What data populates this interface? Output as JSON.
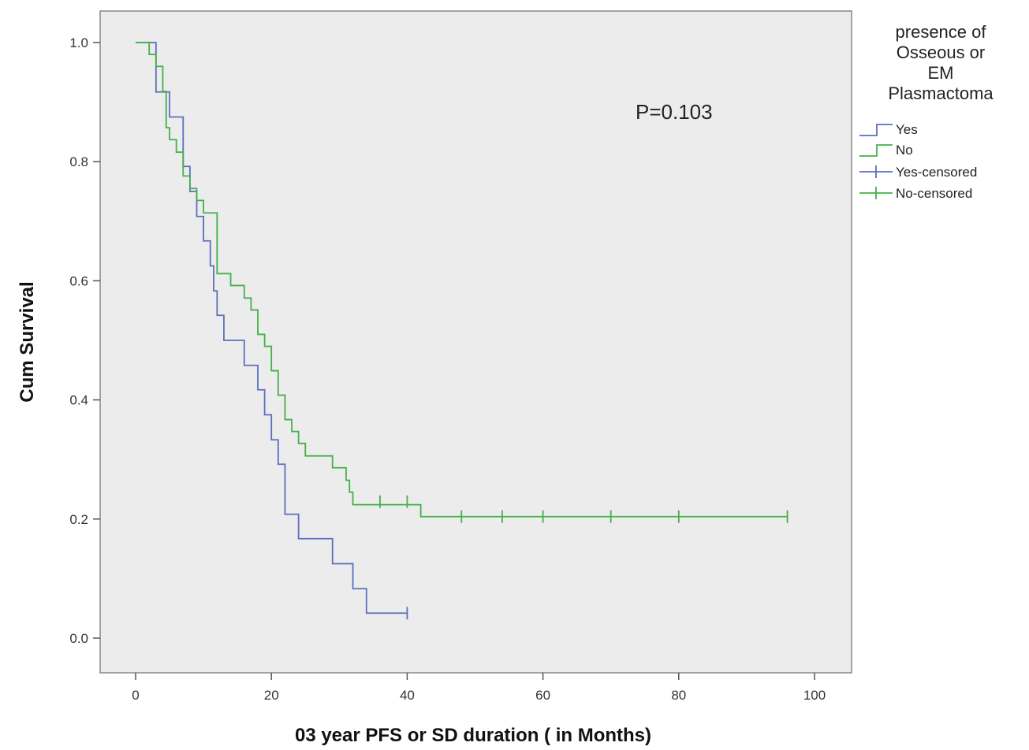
{
  "chart_data": {
    "type": "line",
    "subtype": "kaplan-meier",
    "title": "",
    "xlabel": "03 year PFS or SD duration ( in Months)",
    "ylabel": "Cum Survival",
    "xlim": [
      0,
      100
    ],
    "ylim": [
      0,
      1.0
    ],
    "xticks": [
      0,
      20,
      40,
      60,
      80,
      100
    ],
    "yticks": [
      0.0,
      0.2,
      0.4,
      0.6,
      0.8,
      1.0
    ],
    "xtick_labels": [
      "0",
      "20",
      "40",
      "60",
      "80",
      "100"
    ],
    "ytick_labels": [
      "0.0",
      "0.2",
      "0.4",
      "0.6",
      "0.8",
      "1.0"
    ],
    "grid": false,
    "background": "#ececec",
    "annotation": "P=0.103",
    "legend": {
      "title": [
        "presence of",
        "Osseous or",
        "EM",
        "Plasmactoma"
      ],
      "placement": "right",
      "entries": [
        "Yes",
        "No",
        "Yes-censored",
        "No-censored"
      ]
    },
    "series": [
      {
        "name": "Yes",
        "color": "#5a6fbf",
        "steps": [
          [
            0,
            1.0
          ],
          [
            3,
            0.917
          ],
          [
            5,
            0.875
          ],
          [
            7,
            0.792
          ],
          [
            8,
            0.75
          ],
          [
            9,
            0.708
          ],
          [
            10,
            0.667
          ],
          [
            11,
            0.625
          ],
          [
            11.5,
            0.583
          ],
          [
            12,
            0.542
          ],
          [
            13,
            0.5
          ],
          [
            16,
            0.458
          ],
          [
            18,
            0.417
          ],
          [
            19,
            0.375
          ],
          [
            20,
            0.333
          ],
          [
            21,
            0.292
          ],
          [
            22,
            0.208
          ],
          [
            23,
            0.208
          ],
          [
            24,
            0.167
          ],
          [
            29,
            0.125
          ],
          [
            32,
            0.083
          ],
          [
            34,
            0.042
          ],
          [
            40,
            0.042
          ]
        ],
        "censored": [
          [
            40,
            0.042
          ]
        ]
      },
      {
        "name": "No",
        "color": "#44b04a",
        "steps": [
          [
            0,
            1.0
          ],
          [
            2,
            0.98
          ],
          [
            3,
            0.96
          ],
          [
            4,
            0.918
          ],
          [
            4.5,
            0.857
          ],
          [
            5,
            0.837
          ],
          [
            6,
            0.816
          ],
          [
            7,
            0.776
          ],
          [
            8,
            0.755
          ],
          [
            9,
            0.735
          ],
          [
            10,
            0.714
          ],
          [
            12,
            0.612
          ],
          [
            14,
            0.592
          ],
          [
            16,
            0.571
          ],
          [
            17,
            0.551
          ],
          [
            18,
            0.51
          ],
          [
            19,
            0.49
          ],
          [
            20,
            0.449
          ],
          [
            21,
            0.408
          ],
          [
            22,
            0.367
          ],
          [
            23,
            0.347
          ],
          [
            24,
            0.327
          ],
          [
            25,
            0.306
          ],
          [
            29,
            0.286
          ],
          [
            31,
            0.265
          ],
          [
            31.5,
            0.245
          ],
          [
            32,
            0.224
          ],
          [
            42,
            0.204
          ],
          [
            96,
            0.204
          ]
        ],
        "censored": [
          [
            36,
            0.229
          ],
          [
            40,
            0.229
          ],
          [
            48,
            0.204
          ],
          [
            54,
            0.204
          ],
          [
            60,
            0.204
          ],
          [
            70,
            0.204
          ],
          [
            80,
            0.204
          ],
          [
            96,
            0.204
          ]
        ]
      }
    ]
  }
}
